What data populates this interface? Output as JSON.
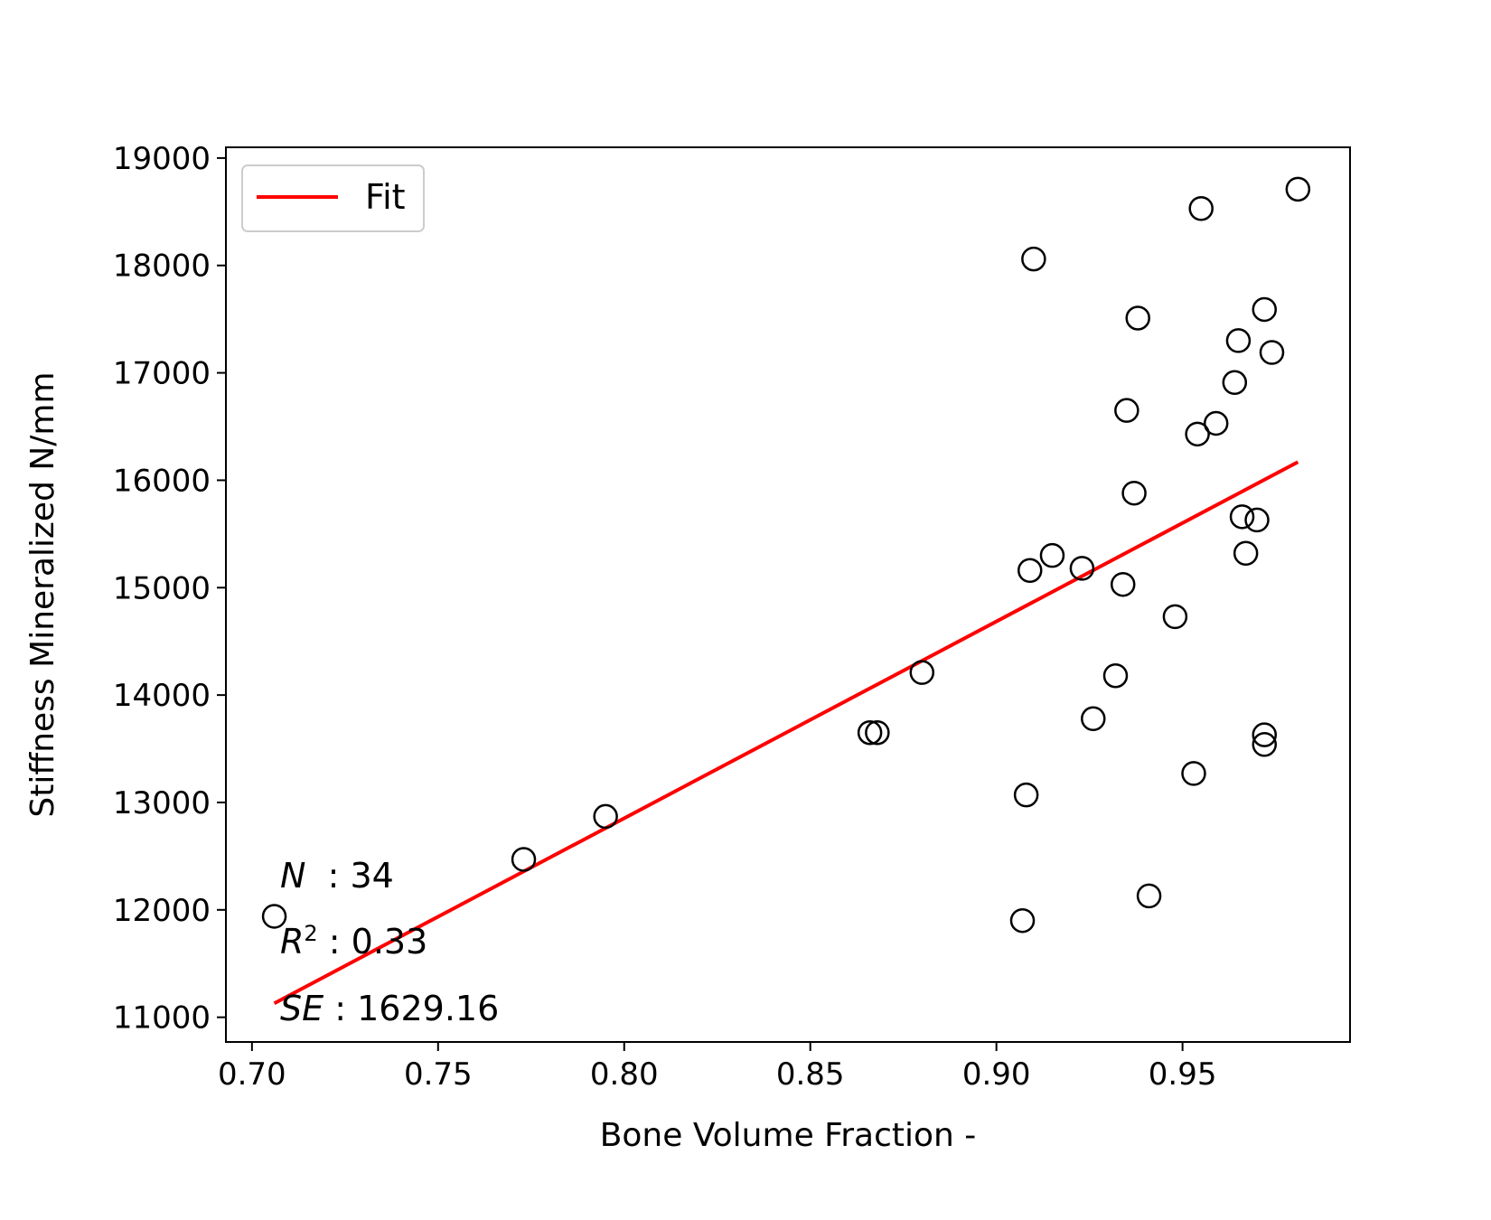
{
  "chart_data": {
    "type": "scatter",
    "xlabel": "Bone Volume Fraction -",
    "ylabel": "Stiffness Mineralized N/mm",
    "xlim": [
      0.693,
      0.995
    ],
    "ylim": [
      10770,
      19100
    ],
    "x_ticks": [
      0.7,
      0.75,
      0.8,
      0.85,
      0.9,
      0.95
    ],
    "x_tick_labels": [
      "0.70",
      "0.75",
      "0.80",
      "0.85",
      "0.90",
      "0.95"
    ],
    "y_ticks": [
      11000,
      12000,
      13000,
      14000,
      15000,
      16000,
      17000,
      18000,
      19000
    ],
    "y_tick_labels": [
      "11000",
      "12000",
      "13000",
      "14000",
      "15000",
      "16000",
      "17000",
      "18000",
      "19000"
    ],
    "grid": false,
    "legend": {
      "position": "top-left",
      "entries": [
        {
          "label": "Fit",
          "color": "#ff0000"
        }
      ]
    },
    "series": [
      {
        "kind": "scatter",
        "marker": "open-circle",
        "color": "#000000",
        "points": [
          [
            0.706,
            11940
          ],
          [
            0.773,
            12470
          ],
          [
            0.795,
            12870
          ],
          [
            0.866,
            13650
          ],
          [
            0.868,
            13650
          ],
          [
            0.88,
            14210
          ],
          [
            0.907,
            11900
          ],
          [
            0.908,
            13070
          ],
          [
            0.909,
            15160
          ],
          [
            0.91,
            18060
          ],
          [
            0.915,
            15300
          ],
          [
            0.923,
            15180
          ],
          [
            0.926,
            13780
          ],
          [
            0.932,
            14180
          ],
          [
            0.934,
            15030
          ],
          [
            0.935,
            16650
          ],
          [
            0.937,
            15880
          ],
          [
            0.938,
            17510
          ],
          [
            0.941,
            12130
          ],
          [
            0.948,
            14730
          ],
          [
            0.953,
            13270
          ],
          [
            0.954,
            16430
          ],
          [
            0.955,
            18530
          ],
          [
            0.959,
            16530
          ],
          [
            0.964,
            16910
          ],
          [
            0.965,
            17300
          ],
          [
            0.966,
            15660
          ],
          [
            0.967,
            15320
          ],
          [
            0.97,
            15630
          ],
          [
            0.972,
            17590
          ],
          [
            0.972,
            13630
          ],
          [
            0.972,
            13540
          ],
          [
            0.974,
            17190
          ],
          [
            0.981,
            18710
          ]
        ]
      },
      {
        "kind": "line",
        "name": "Fit",
        "color": "#ff0000",
        "points": [
          [
            0.706,
            11130
          ],
          [
            0.981,
            16170
          ]
        ]
      }
    ],
    "annotations": [
      {
        "label": "N",
        "value": "34"
      },
      {
        "label": "R",
        "sup": "2",
        "value": "0.33"
      },
      {
        "label": "SE",
        "value": "1629.16"
      }
    ]
  }
}
